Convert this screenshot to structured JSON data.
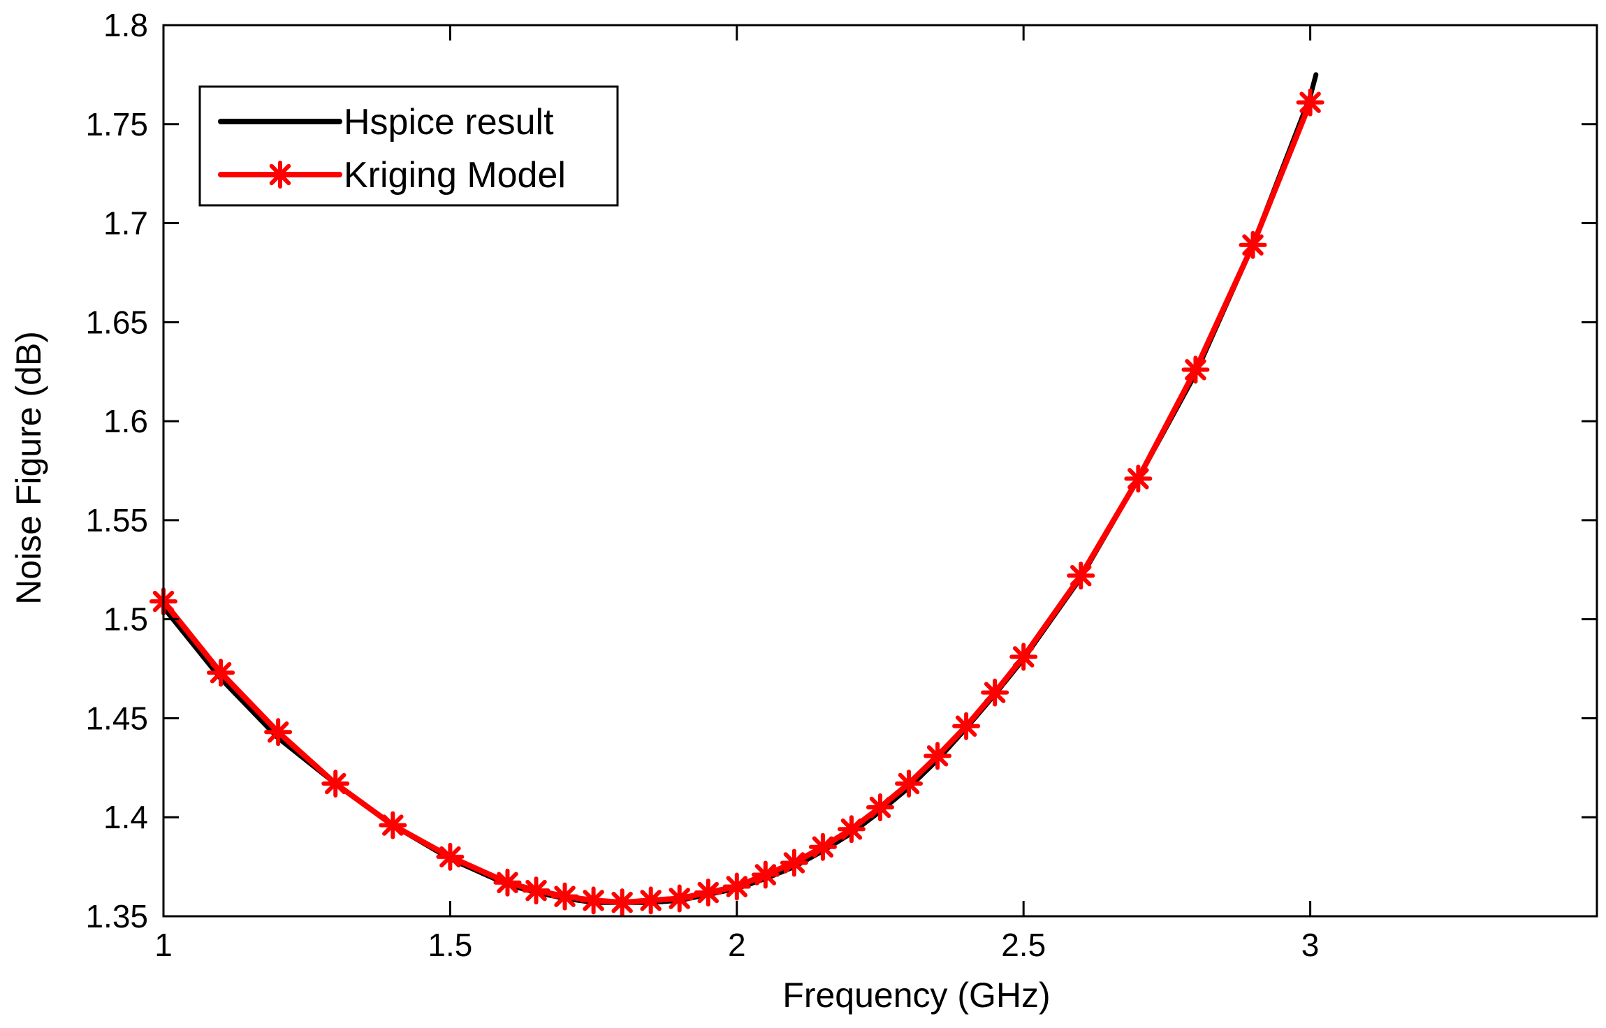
{
  "chart_data": {
    "type": "line",
    "title": "",
    "xlabel": "Frequency (GHz)",
    "ylabel": "Noise Figure (dB)",
    "xlim": [
      1,
      3.5
    ],
    "ylim": [
      1.35,
      1.8
    ],
    "xticks": [
      1,
      1.5,
      2,
      2.5,
      3
    ],
    "xtick_labels": [
      "1",
      "1.5",
      "2",
      "2.5",
      "3"
    ],
    "yticks": [
      1.35,
      1.4,
      1.45,
      1.5,
      1.55,
      1.6,
      1.65,
      1.7,
      1.75,
      1.8
    ],
    "ytick_labels": [
      "1.35",
      "1.4",
      "1.45",
      "1.5",
      "1.55",
      "1.6",
      "1.65",
      "1.7",
      "1.75",
      "1.8"
    ],
    "grid": false,
    "legend_position": "top-left",
    "series": [
      {
        "name": "Hspice result",
        "color": "#000000",
        "marker": "none",
        "x": [
          1.0,
          1.1,
          1.2,
          1.3,
          1.4,
          1.5,
          1.6,
          1.65,
          1.7,
          1.75,
          1.8,
          1.85,
          1.9,
          1.95,
          2.0,
          2.05,
          2.1,
          2.15,
          2.2,
          2.25,
          2.3,
          2.35,
          2.4,
          2.45,
          2.5,
          2.6,
          2.7,
          2.8,
          2.9,
          3.0,
          3.01
        ],
        "y": [
          1.506,
          1.47,
          1.44,
          1.417,
          1.396,
          1.379,
          1.366,
          1.362,
          1.359,
          1.357,
          1.357,
          1.357,
          1.358,
          1.361,
          1.364,
          1.369,
          1.375,
          1.383,
          1.392,
          1.403,
          1.415,
          1.429,
          1.445,
          1.462,
          1.48,
          1.521,
          1.571,
          1.624,
          1.689,
          1.764,
          1.775
        ]
      },
      {
        "name": "Kriging Model",
        "color": "#ff0000",
        "marker": "asterisk",
        "x": [
          1.0,
          1.1,
          1.2,
          1.3,
          1.4,
          1.5,
          1.6,
          1.65,
          1.7,
          1.75,
          1.8,
          1.85,
          1.9,
          1.95,
          2.0,
          2.05,
          2.1,
          2.15,
          2.2,
          2.25,
          2.3,
          2.35,
          2.4,
          2.45,
          2.5,
          2.6,
          2.7,
          2.8,
          2.9,
          3.0
        ],
        "y": [
          1.509,
          1.473,
          1.443,
          1.417,
          1.396,
          1.38,
          1.367,
          1.363,
          1.36,
          1.358,
          1.357,
          1.358,
          1.359,
          1.362,
          1.365,
          1.371,
          1.377,
          1.385,
          1.394,
          1.405,
          1.417,
          1.431,
          1.446,
          1.463,
          1.481,
          1.522,
          1.571,
          1.626,
          1.689,
          1.761
        ]
      }
    ]
  }
}
